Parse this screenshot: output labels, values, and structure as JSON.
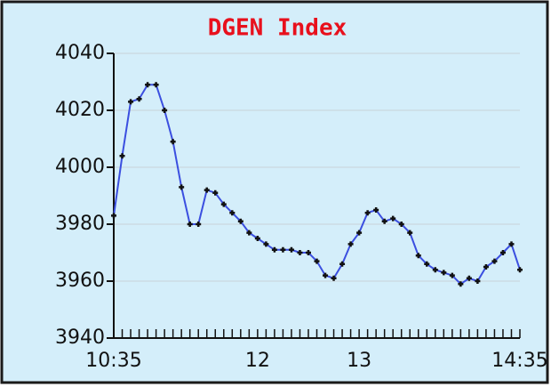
{
  "chart_data": {
    "type": "line",
    "title": "DGEN Index",
    "categories": [
      "10:35",
      null,
      null,
      null,
      null,
      null,
      null,
      null,
      null,
      null,
      null,
      null,
      null,
      null,
      null,
      null,
      null,
      "12",
      null,
      null,
      null,
      null,
      null,
      null,
      null,
      null,
      null,
      null,
      null,
      "13",
      null,
      null,
      null,
      null,
      null,
      null,
      null,
      null,
      null,
      null,
      null,
      null,
      null,
      null,
      null,
      null,
      null,
      null,
      "14:35"
    ],
    "series": [
      {
        "name": "DGEN Index",
        "color": "#3b4fe0",
        "values": [
          3983,
          4004,
          4023,
          4024,
          4029,
          4029,
          4020,
          4009,
          3993,
          3980,
          3980,
          3992,
          3991,
          3987,
          3984,
          3981,
          3977,
          3975,
          3973,
          3971,
          3971,
          3971,
          3970,
          3970,
          3967,
          3962,
          3961,
          3966,
          3973,
          3977,
          3984,
          3985,
          3981,
          3982,
          3980,
          3977,
          3969,
          3966,
          3964,
          3963,
          3962,
          3959,
          3961,
          3960,
          3965,
          3967,
          3970,
          3973,
          3964
        ]
      }
    ],
    "ylim": [
      3940,
      4040
    ],
    "yticks": [
      3940,
      3960,
      3980,
      4000,
      4020,
      4040
    ],
    "grid": true
  }
}
